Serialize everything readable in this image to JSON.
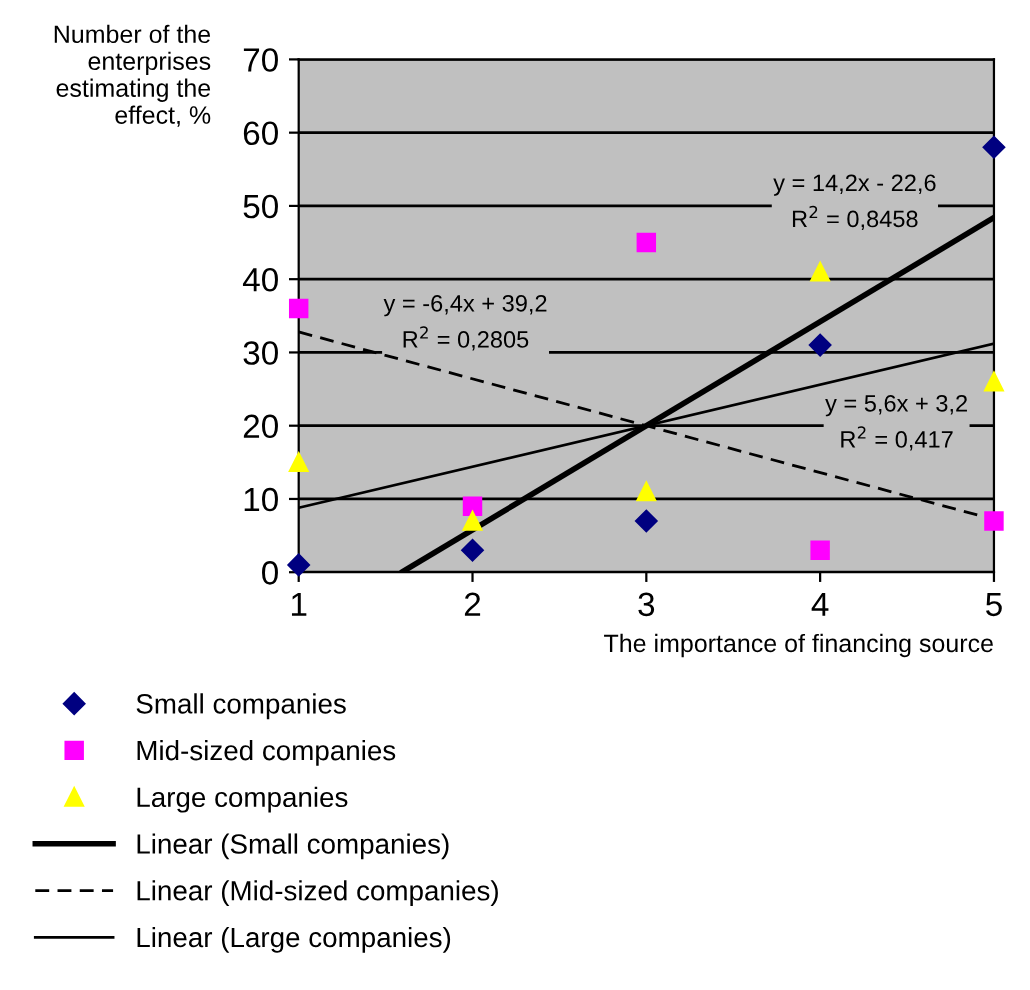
{
  "chart_data": {
    "type": "scatter",
    "xlabel": "The importance of financing source",
    "ylabel": "Number of the\nenterprises\nestimating the\neffect, %",
    "x": [
      1,
      2,
      3,
      4,
      5
    ],
    "series": [
      {
        "name": "Small companies",
        "marker": "diamond",
        "color": "#000080",
        "values": [
          1,
          3,
          7,
          31,
          58
        ]
      },
      {
        "name": "Mid-sized companies",
        "marker": "square",
        "color": "#ff00ff",
        "values": [
          36,
          9,
          45,
          3,
          7
        ]
      },
      {
        "name": "Large companies",
        "marker": "triangle",
        "color": "#ffff00",
        "values": [
          15,
          7,
          11,
          41,
          26
        ]
      },
      {
        "name": "Linear (Small companies)",
        "type": "line",
        "line_style": "solid",
        "color": "#000000",
        "x": [
          1.6,
          5
        ],
        "values": [
          0.1,
          48.4
        ]
      },
      {
        "name": "Linear (Mid-sized companies)",
        "type": "line",
        "line_style": "dashed",
        "color": "#000000",
        "x": [
          1,
          5
        ],
        "values": [
          32.8,
          7.2
        ]
      },
      {
        "name": "Linear (Large companies)",
        "type": "line",
        "line_style": "solid",
        "color": "#000000",
        "x": [
          1,
          5
        ],
        "values": [
          8.8,
          31.2
        ]
      }
    ],
    "annotations": [
      "y = 14,2x - 22,6\nR$^{2}$ = 0,8458",
      "y = -6,4x + 39,2\nR$^{2}$ = 0,2805",
      "y = 5,6x + 3,2\nR$^{2}$ = 0,417"
    ],
    "xlim": [
      1,
      5
    ],
    "xticks": [
      1,
      2,
      3,
      4,
      5
    ],
    "ylim": [
      0,
      70
    ],
    "yticks": [
      0,
      10,
      20,
      30,
      40,
      50,
      60,
      70
    ],
    "grid": "y",
    "legend": "bottom"
  }
}
